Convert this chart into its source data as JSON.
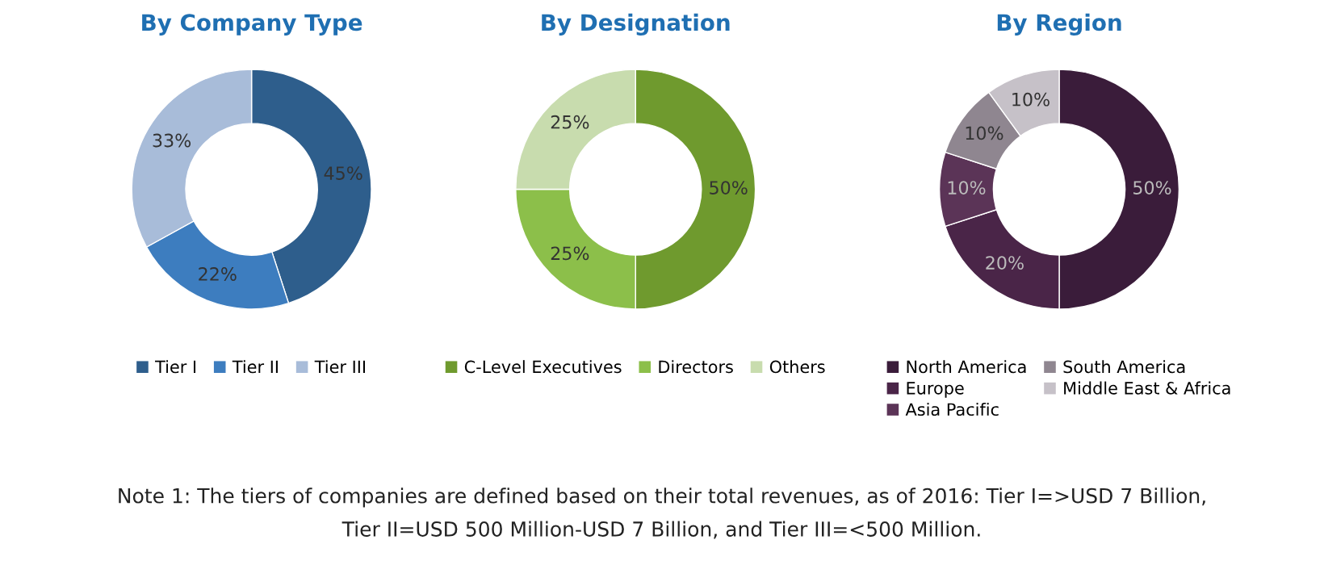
{
  "chart_data": [
    {
      "type": "donut",
      "title": "By Company Type",
      "categories": [
        "Tier I",
        "Tier II",
        "Tier III"
      ],
      "values": [
        45,
        22,
        33
      ],
      "value_labels": [
        "45%",
        "22%",
        "33%"
      ],
      "colors": [
        "#2e5e8c",
        "#3d7dbf",
        "#a8bcd9"
      ],
      "legend": "bottom"
    },
    {
      "type": "donut",
      "title": "By Designation",
      "categories": [
        "C-Level Executives",
        "Directors",
        "Others"
      ],
      "values": [
        50,
        25,
        25
      ],
      "value_labels": [
        "50%",
        "25%",
        "25%"
      ],
      "colors": [
        "#6f9a2e",
        "#8cbf4a",
        "#c8dcae"
      ],
      "legend": "bottom"
    },
    {
      "type": "donut",
      "title": "By Region",
      "categories": [
        "North America",
        "Europe",
        "Asia Pacific",
        "South America",
        "Middle East & Africa"
      ],
      "values": [
        50,
        20,
        10,
        10,
        10
      ],
      "value_labels": [
        "50%",
        "20%",
        "10%",
        "10%",
        "10%"
      ],
      "colors": [
        "#3a1c3a",
        "#4a2548",
        "#5b3457",
        "#8f8690",
        "#c6c1c8"
      ],
      "legend": "bottom",
      "annotations": [
        "Note 1: The tiers of companies are defined based on their total revenues, as of 2016: Tier I=>USD 7 Billion,\nTier II=USD 500 Million-USD 7 Billion, and Tier III=<500 Million."
      ]
    }
  ]
}
